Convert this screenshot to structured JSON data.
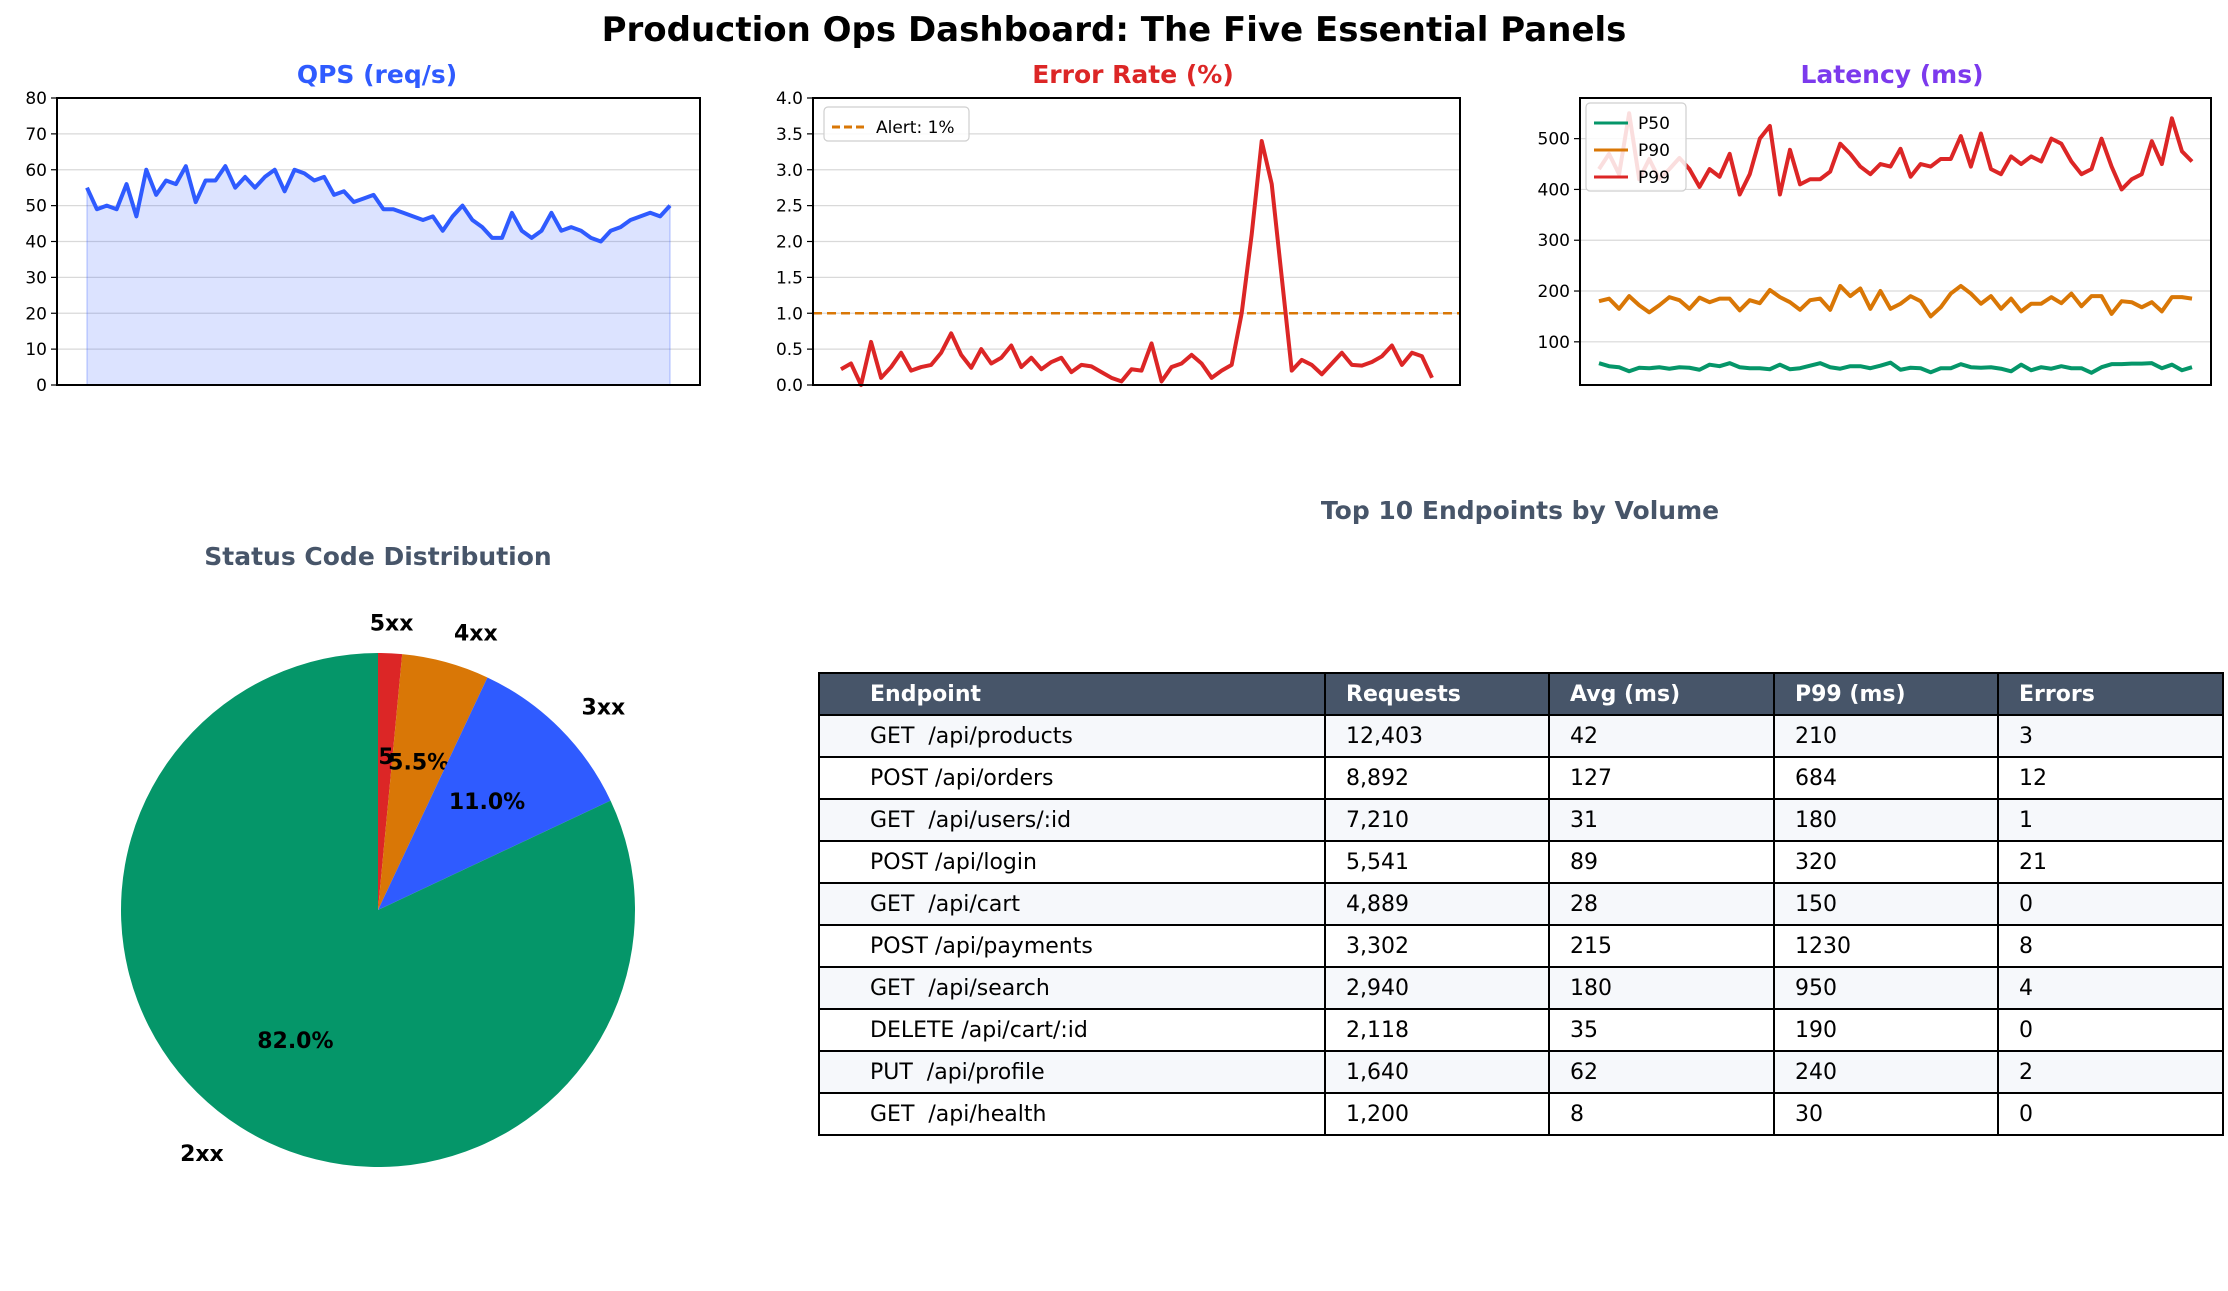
{
  "title": "Production Ops Dashboard: The Five Essential Panels",
  "colors": {
    "qps": "#2f5bff",
    "error": "#dc2626",
    "alert": "#d97706",
    "p50": "#059669",
    "p90": "#d97706",
    "p99": "#dc2626",
    "latency_title": "#7c3aed",
    "muted_title": "#475569",
    "pie": [
      "#059669",
      "#2f5bff",
      "#d97706",
      "#dc2626"
    ]
  },
  "chart_data": [
    {
      "type": "area",
      "title": "QPS (req/s)",
      "ylim": [
        0,
        80
      ],
      "yticks": [
        "0",
        "10",
        "20",
        "30",
        "40",
        "50",
        "60",
        "70",
        "80"
      ],
      "grid": true,
      "series": [
        {
          "values": [
            55,
            49,
            50,
            49,
            56,
            47,
            60,
            53,
            57,
            56,
            61,
            51,
            57,
            57,
            61,
            55,
            58,
            55,
            58,
            60,
            54,
            60,
            59,
            57,
            58,
            53,
            54,
            51,
            52,
            53,
            49,
            49,
            48,
            47,
            46,
            47,
            43,
            47,
            50,
            46,
            44,
            41,
            41,
            48,
            43,
            41,
            43,
            48,
            43,
            44,
            43,
            41,
            40,
            43,
            44,
            46,
            47,
            48,
            47,
            50
          ]
        }
      ]
    },
    {
      "type": "line",
      "title": "Error Rate (%)",
      "ylim": [
        0,
        4.0
      ],
      "yticks": [
        "0.0",
        "0.5",
        "1.0",
        "1.5",
        "2.0",
        "2.5",
        "3.0",
        "3.5",
        "4.0"
      ],
      "grid": true,
      "threshold": {
        "value": 1.0,
        "label": "Alert: 1%"
      },
      "legend": "top-left",
      "series": [
        {
          "values": [
            0.22,
            0.3,
            0.0,
            0.6,
            0.1,
            0.25,
            0.45,
            0.2,
            0.25,
            0.28,
            0.45,
            0.72,
            0.42,
            0.24,
            0.5,
            0.3,
            0.38,
            0.55,
            0.25,
            0.38,
            0.22,
            0.32,
            0.38,
            0.18,
            0.28,
            0.26,
            0.18,
            0.1,
            0.05,
            0.22,
            0.2,
            0.58,
            0.05,
            0.25,
            0.3,
            0.42,
            0.3,
            0.1,
            0.2,
            0.28,
            1.0,
            2.1,
            3.4,
            2.8,
            1.5,
            0.2,
            0.35,
            0.28,
            0.15,
            0.3,
            0.45,
            0.28,
            0.27,
            0.32,
            0.4,
            0.55,
            0.28,
            0.45,
            0.4,
            0.1
          ]
        }
      ]
    },
    {
      "type": "line",
      "title": "Latency (ms)",
      "ylim": [
        15,
        580
      ],
      "yticks": [
        "100",
        "200",
        "300",
        "400",
        "500"
      ],
      "grid": true,
      "legend": "top-left",
      "series": [
        {
          "name": "P50",
          "values": [
            58,
            52,
            50,
            42,
            49,
            48,
            50,
            47,
            50,
            49,
            45,
            55,
            52,
            58,
            50,
            48,
            48,
            46,
            55,
            46,
            48,
            53,
            58,
            50,
            47,
            52,
            52,
            48,
            53,
            59,
            45,
            49,
            48,
            40,
            48,
            48,
            56,
            50,
            49,
            50,
            47,
            42,
            55,
            44,
            50,
            47,
            52,
            48,
            48,
            39,
            50,
            56,
            56,
            57,
            57,
            58,
            48,
            55,
            44,
            50
          ]
        },
        {
          "name": "P90",
          "values": [
            180,
            185,
            165,
            190,
            172,
            158,
            172,
            188,
            182,
            165,
            187,
            178,
            185,
            185,
            162,
            182,
            176,
            202,
            188,
            178,
            163,
            182,
            185,
            163,
            210,
            190,
            205,
            165,
            200,
            165,
            175,
            190,
            180,
            150,
            168,
            195,
            210,
            195,
            175,
            190,
            165,
            185,
            160,
            175,
            175,
            188,
            176,
            195,
            170,
            190,
            190,
            155,
            180,
            178,
            168,
            178,
            160,
            188,
            188,
            185
          ]
        },
        {
          "name": "P99",
          "values": [
            440,
            470,
            430,
            550,
            420,
            460,
            420,
            440,
            462,
            440,
            405,
            440,
            425,
            470,
            390,
            430,
            500,
            525,
            390,
            478,
            410,
            420,
            420,
            435,
            490,
            470,
            445,
            430,
            450,
            445,
            480,
            425,
            450,
            445,
            460,
            460,
            505,
            445,
            510,
            440,
            430,
            465,
            450,
            465,
            455,
            500,
            490,
            455,
            430,
            440,
            500,
            445,
            400,
            420,
            430,
            495,
            450,
            540,
            475,
            455
          ]
        }
      ]
    },
    {
      "type": "pie",
      "title": "Status Code Distribution",
      "categories": [
        "2xx",
        "3xx",
        "4xx",
        "5xx"
      ],
      "values": [
        82.0,
        11.0,
        5.5,
        1.5
      ],
      "labels_pct": [
        "82.0%",
        "11.0%",
        "5.5%",
        "1.5%"
      ]
    },
    {
      "type": "table",
      "title": "Top 10 Endpoints by Volume",
      "columns": [
        "Endpoint",
        "Requests",
        "Avg (ms)",
        "P99 (ms)",
        "Errors"
      ],
      "rows": [
        [
          "GET  /api/products",
          "12,403",
          "42",
          "210",
          "3"
        ],
        [
          "POST /api/orders",
          "8,892",
          "127",
          "684",
          "12"
        ],
        [
          "GET  /api/users/:id",
          "7,210",
          "31",
          "180",
          "1"
        ],
        [
          "POST /api/login",
          "5,541",
          "89",
          "320",
          "21"
        ],
        [
          "GET  /api/cart",
          "4,889",
          "28",
          "150",
          "0"
        ],
        [
          "POST /api/payments",
          "3,302",
          "215",
          "1230",
          "8"
        ],
        [
          "GET  /api/search",
          "2,940",
          "180",
          "950",
          "4"
        ],
        [
          "DELETE /api/cart/:id",
          "2,118",
          "35",
          "190",
          "0"
        ],
        [
          "PUT  /api/profile",
          "1,640",
          "62",
          "240",
          "2"
        ],
        [
          "GET  /api/health",
          "1,200",
          "8",
          "30",
          "0"
        ]
      ]
    }
  ]
}
